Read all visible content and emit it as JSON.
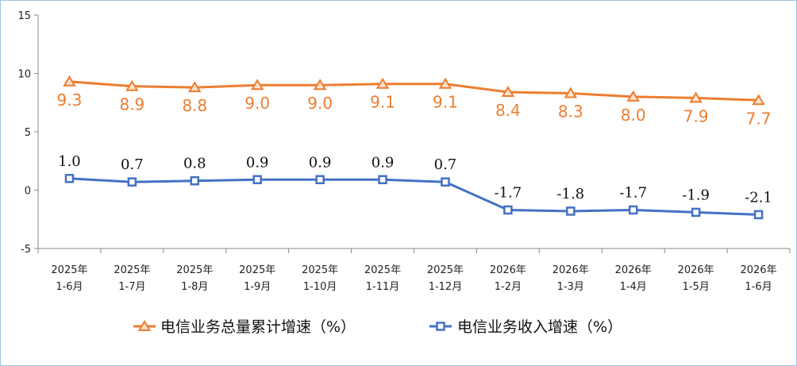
{
  "chart_data": {
    "type": "line",
    "categories": [
      [
        "2025年",
        "1-6月"
      ],
      [
        "2025年",
        "1-7月"
      ],
      [
        "2025年",
        "1-8月"
      ],
      [
        "2025年",
        "1-9月"
      ],
      [
        "2025年",
        "1-10月"
      ],
      [
        "2025年",
        "1-11月"
      ],
      [
        "2025年",
        "1-12月"
      ],
      [
        "2026年",
        "1-2月"
      ],
      [
        "2026年",
        "1-3月"
      ],
      [
        "2026年",
        "1-4月"
      ],
      [
        "2026年",
        "1-5月"
      ],
      [
        "2026年",
        "1-6月"
      ]
    ],
    "series": [
      {
        "name": "电信业务总量累计增速（%）",
        "color": "#ed7d31",
        "marker": "triangle",
        "values": [
          9.3,
          8.9,
          8.8,
          9.0,
          9.0,
          9.1,
          9.1,
          8.4,
          8.3,
          8.0,
          7.9,
          7.7
        ],
        "labels": [
          "9.3",
          "8.9",
          "8.8",
          "9.0",
          "9.0",
          "9.1",
          "9.1",
          "8.4",
          "8.3",
          "8.0",
          "7.9",
          "7.7"
        ]
      },
      {
        "name": "电信业务收入增速（%）",
        "color": "#4472c4",
        "marker": "square",
        "values": [
          1.0,
          0.7,
          0.8,
          0.9,
          0.9,
          0.9,
          0.7,
          -1.7,
          -1.8,
          -1.7,
          -1.9,
          -2.1
        ],
        "labels": [
          "1.0",
          "0.7",
          "0.8",
          "0.9",
          "0.9",
          "0.9",
          "0.7",
          "-1.7",
          "-1.8",
          "-1.7",
          "-1.9",
          "-2.1"
        ]
      }
    ],
    "ylim": [
      -5,
      15
    ],
    "yticks": [
      -5,
      0,
      5,
      10,
      15
    ],
    "ytick_labels": [
      "-5",
      "0",
      "5",
      "10",
      "15"
    ],
    "grid": false,
    "legend_position": "bottom",
    "title": "",
    "xlabel": "",
    "ylabel": ""
  }
}
